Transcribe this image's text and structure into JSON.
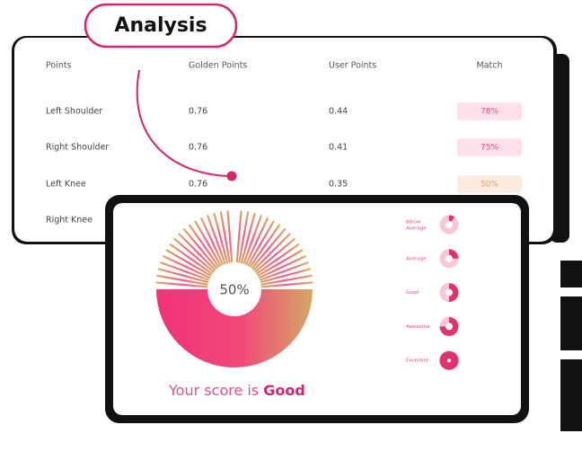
{
  "badge": {
    "title": "Analysis"
  },
  "table": {
    "headers": [
      "Points",
      "Golden Points",
      "User Points",
      "Match"
    ],
    "rows": [
      [
        "Left Shoulder",
        "0.76",
        "0.44",
        "78%"
      ],
      [
        "Right Shoulder",
        "0.76",
        "0.41",
        "75%"
      ],
      [
        "Left Knee",
        "0.76",
        "0.35",
        "50%"
      ],
      [
        "Right Knee"
      ]
    ]
  },
  "score": {
    "value": "50%",
    "caption": "Your score is",
    "rating": "Good",
    "legend": [
      "Below Average",
      "Average",
      "Good",
      "Awesome",
      "Excellent"
    ]
  }
}
